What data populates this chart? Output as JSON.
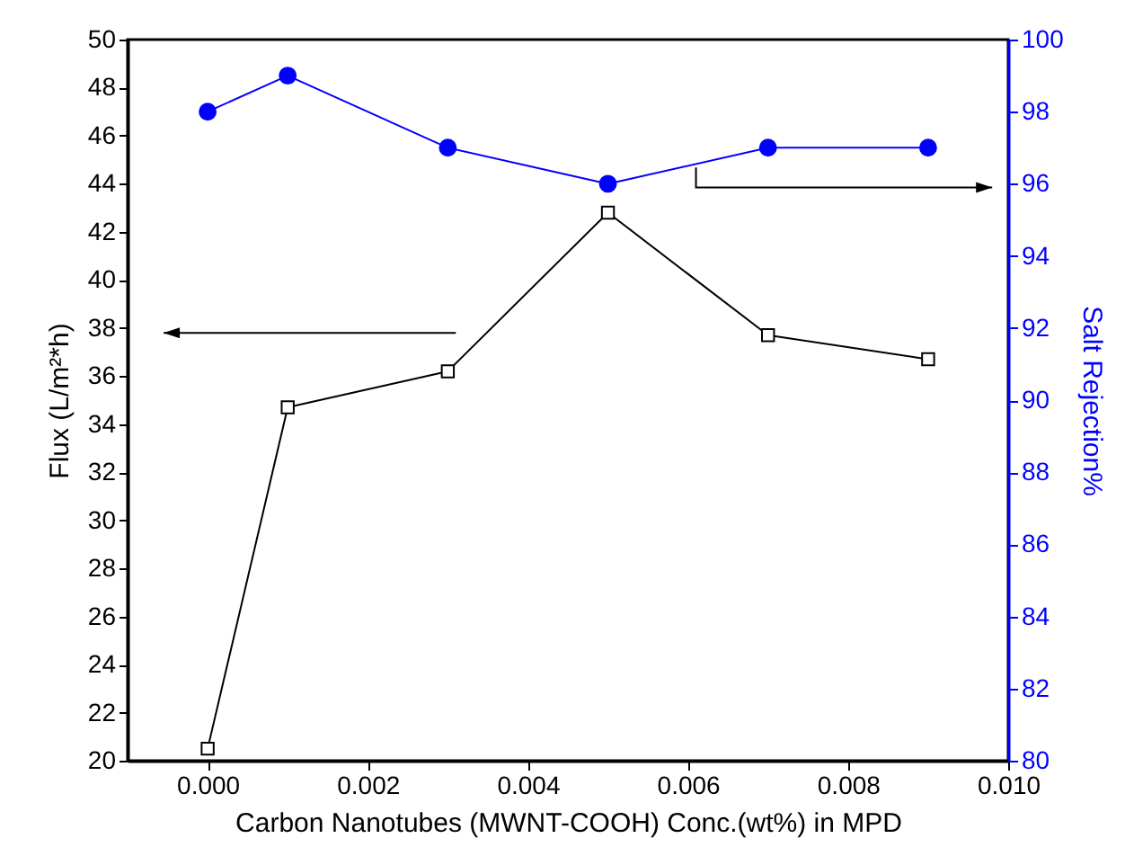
{
  "chart_data": {
    "type": "line",
    "xlabel": "Carbon Nanotubes (MWNT-COOH) Conc.(wt%) in MPD",
    "ylabel": "Flux (L/m²*h)",
    "y2label": "Salt Rejection%",
    "x": [
      0,
      0.001,
      0.003,
      0.005,
      0.007,
      0.009
    ],
    "series": [
      {
        "color": "#000000",
        "marker": "square",
        "values": [
          20.5,
          34.7,
          36.2,
          42.8,
          37.7,
          36.7
        ]
      },
      {
        "color": "#0000ff",
        "marker": "circle",
        "axis": "y2",
        "values": [
          98,
          99,
          97,
          96,
          97,
          97
        ]
      }
    ],
    "xlim": [
      -0.001,
      0.01
    ],
    "xticks": [
      {
        "value": 0,
        "label": "0.000"
      },
      {
        "value": 0.002,
        "label": "0.002"
      },
      {
        "value": 0.004,
        "label": "0.004"
      },
      {
        "value": 0.006,
        "label": "0.006"
      },
      {
        "value": 0.008,
        "label": "0.008"
      },
      {
        "value": 0.01,
        "label": "0.010"
      }
    ],
    "ylim": [
      20,
      50
    ],
    "yticks": [
      20,
      22,
      24,
      26,
      28,
      30,
      32,
      34,
      36,
      38,
      40,
      42,
      44,
      46,
      48,
      50
    ],
    "y2lim": [
      80,
      100
    ],
    "y2ticks": [
      80,
      82,
      84,
      86,
      88,
      90,
      92,
      94,
      96,
      98,
      100
    ],
    "line_style": "solid"
  }
}
